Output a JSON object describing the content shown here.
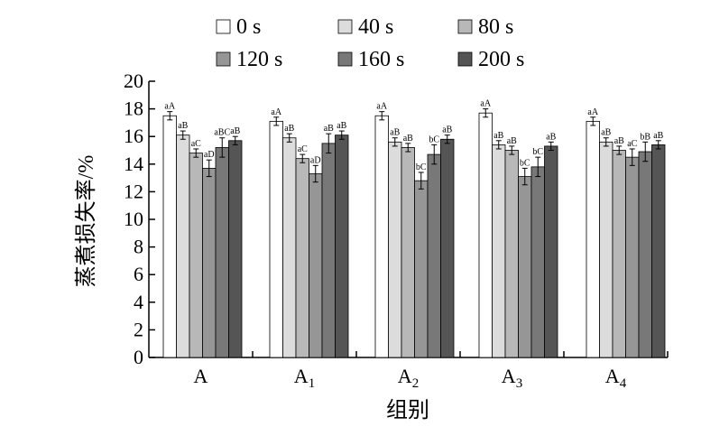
{
  "chart_data": {
    "type": "bar",
    "title": "",
    "xlabel": "组别",
    "ylabel": "蒸煮损失率/%",
    "ylim": [
      0,
      20
    ],
    "yticks": [
      0,
      2,
      4,
      6,
      8,
      10,
      12,
      14,
      16,
      18,
      20
    ],
    "categories": [
      {
        "base": "A",
        "sub": ""
      },
      {
        "base": "A",
        "sub": "1"
      },
      {
        "base": "A",
        "sub": "2"
      },
      {
        "base": "A",
        "sub": "3"
      },
      {
        "base": "A",
        "sub": "4"
      }
    ],
    "series": [
      {
        "name": "0 s",
        "color": "#ffffff",
        "values": [
          17.5,
          17.1,
          17.5,
          17.7,
          17.1
        ],
        "errors": [
          0.3,
          0.3,
          0.3,
          0.3,
          0.3
        ],
        "labels": [
          "aA",
          "aA",
          "aA",
          "aA",
          "aA"
        ]
      },
      {
        "name": "40 s",
        "color": "#dcdcdc",
        "values": [
          16.1,
          15.9,
          15.6,
          15.4,
          15.6
        ],
        "errors": [
          0.3,
          0.3,
          0.3,
          0.3,
          0.3
        ],
        "labels": [
          "aB",
          "aB",
          "aB",
          "aB",
          "aB"
        ]
      },
      {
        "name": "80 s",
        "color": "#b8b8b8",
        "values": [
          14.8,
          14.4,
          15.2,
          15.0,
          15.0
        ],
        "errors": [
          0.3,
          0.3,
          0.3,
          0.3,
          0.3
        ],
        "labels": [
          "aC",
          "aC",
          "aB",
          "aB",
          "aB"
        ]
      },
      {
        "name": "120 s",
        "color": "#969696",
        "values": [
          13.7,
          13.3,
          12.8,
          13.1,
          14.5
        ],
        "errors": [
          0.6,
          0.6,
          0.6,
          0.6,
          0.6
        ],
        "labels": [
          "aD",
          "aD",
          "bC",
          "bC",
          "aC"
        ]
      },
      {
        "name": "160 s",
        "color": "#787878",
        "values": [
          15.2,
          15.5,
          14.7,
          13.8,
          14.9
        ],
        "errors": [
          0.7,
          0.7,
          0.7,
          0.7,
          0.7
        ],
        "labels": [
          "aBC",
          "aB",
          "bC",
          "bC",
          "bB"
        ]
      },
      {
        "name": "200 s",
        "color": "#555555",
        "values": [
          15.7,
          16.1,
          15.8,
          15.3,
          15.4
        ],
        "errors": [
          0.3,
          0.3,
          0.3,
          0.3,
          0.3
        ],
        "labels": [
          "aB",
          "aB",
          "aB",
          "aB",
          "aB"
        ]
      }
    ],
    "legend_position": "top"
  }
}
